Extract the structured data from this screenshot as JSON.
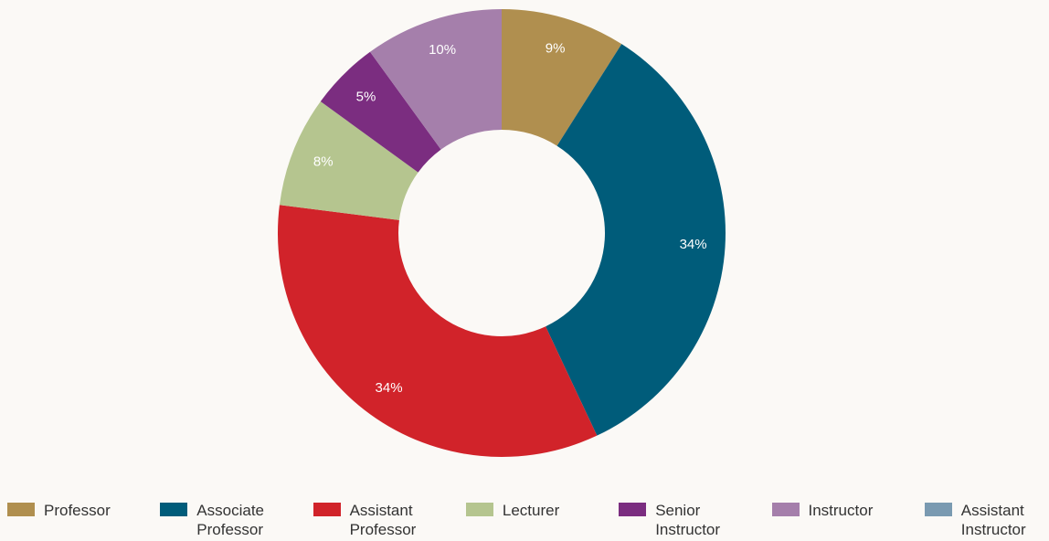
{
  "chart_data": {
    "type": "donut",
    "categories": [
      "Professor",
      "Associate Professor",
      "Assistant Professor",
      "Lecturer",
      "Senior Instructor",
      "Instructor",
      "Assistant Instructor"
    ],
    "values": [
      9,
      34,
      34,
      8,
      5,
      10,
      0
    ],
    "value_labels": [
      "9%",
      "34%",
      "34%",
      "8%",
      "5%",
      "10%",
      null
    ],
    "colors": [
      "#b08f4f",
      "#005c7a",
      "#d1232a",
      "#b5c58f",
      "#7b2d80",
      "#a57fab",
      "#7a9ab1"
    ],
    "legend": "bottom"
  }
}
